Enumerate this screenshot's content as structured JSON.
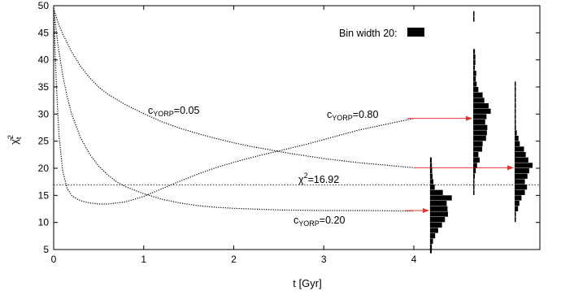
{
  "chart_data": {
    "type": "line",
    "xlabel": "t [Gyr]",
    "ylabel": "χ̄²_t",
    "xlim": [
      0,
      5.4
    ],
    "ylim": [
      5,
      50
    ],
    "xticks": [
      0,
      1,
      2,
      3,
      4
    ],
    "yticks": [
      5,
      10,
      15,
      20,
      25,
      30,
      35,
      40,
      45,
      50
    ],
    "grid": false,
    "series": [
      {
        "name": "cYORP=0.05",
        "label_main": "c",
        "label_sub": "YORP",
        "label_rest": "=0.05",
        "x": [
          0,
          0.05,
          0.1,
          0.2,
          0.3,
          0.4,
          0.5,
          0.6,
          0.8,
          1.0,
          1.2,
          1.4,
          1.6,
          1.8,
          2.0,
          2.2,
          2.4,
          2.6,
          2.8,
          3.0,
          3.2,
          3.4,
          3.6,
          3.8,
          4.0
        ],
        "y": [
          49.5,
          46.8,
          44.8,
          41.5,
          38.8,
          36.7,
          35.0,
          33.7,
          31.7,
          30.1,
          28.6,
          27.4,
          26.4,
          25.5,
          24.7,
          24.0,
          23.4,
          22.8,
          22.3,
          21.8,
          21.4,
          21.0,
          20.7,
          20.4,
          20.1
        ]
      },
      {
        "name": "cYORP=0.20",
        "label_main": "c",
        "label_sub": "YORP",
        "label_rest": "=0.20",
        "x": [
          0,
          0.05,
          0.1,
          0.15,
          0.2,
          0.3,
          0.4,
          0.5,
          0.6,
          0.7,
          0.8,
          1.0,
          1.2,
          1.4,
          1.6,
          1.8,
          2.0,
          2.5,
          3.0,
          3.5,
          4.0
        ],
        "y": [
          49.5,
          42.5,
          37.2,
          33.2,
          30.0,
          25.6,
          22.6,
          20.4,
          18.8,
          17.5,
          16.6,
          15.3,
          14.3,
          13.6,
          13.1,
          12.8,
          12.6,
          12.3,
          12.2,
          12.2,
          12.1
        ]
      },
      {
        "name": "cYORP=0.80",
        "label_main": "c",
        "label_sub": "YORP",
        "label_rest": "=0.80",
        "x": [
          0,
          0.03,
          0.06,
          0.1,
          0.15,
          0.2,
          0.25,
          0.3,
          0.4,
          0.5,
          0.6,
          0.8,
          1.0,
          1.2,
          1.4,
          1.6,
          1.8,
          2.0,
          2.2,
          2.4,
          2.6,
          2.8,
          3.0,
          3.2,
          3.4,
          3.6,
          3.8,
          4.0
        ],
        "y": [
          49.5,
          35.5,
          26.0,
          19.5,
          16.3,
          15.0,
          14.4,
          14.0,
          13.6,
          13.4,
          13.4,
          13.8,
          14.8,
          16.2,
          17.6,
          18.9,
          20.1,
          21.1,
          22.0,
          22.8,
          23.6,
          24.4,
          25.3,
          26.2,
          27.1,
          27.8,
          28.5,
          29.2
        ]
      }
    ],
    "reference_line": {
      "y": 16.92,
      "label_main": "χ",
      "label_sup": "2",
      "label_rest": "=16.92"
    },
    "annotation": {
      "text": "Bin width 20:"
    },
    "histograms": [
      {
        "from_series": "cYORP=0.20",
        "arrow_from": [
          3.9,
          12.2
        ],
        "arrow_to": [
          4.18,
          12.2
        ],
        "baseline_x": 4.18,
        "bins": [
          {
            "y": 4.75,
            "w": 20
          },
          {
            "y": 5.5,
            "w": 22
          },
          {
            "y": 6.5,
            "w": 35
          },
          {
            "y": 7.5,
            "w": 60
          },
          {
            "y": 8.5,
            "w": 95
          },
          {
            "y": 9.5,
            "w": 140
          },
          {
            "y": 10.5,
            "w": 175
          },
          {
            "y": 11.5,
            "w": 210
          },
          {
            "y": 12.5,
            "w": 205
          },
          {
            "y": 13.5,
            "w": 195
          },
          {
            "y": 14.5,
            "w": 255
          },
          {
            "y": 15.5,
            "w": 150
          },
          {
            "y": 16.5,
            "w": 55
          },
          {
            "y": 17.5,
            "w": 40
          },
          {
            "y": 18.5,
            "w": 30
          },
          {
            "y": 19.5,
            "w": 25
          },
          {
            "y": 20.5,
            "w": 22
          },
          {
            "y": 21.5,
            "w": 20
          }
        ]
      },
      {
        "from_series": "cYORP=0.80",
        "arrow_from": [
          3.93,
          29.2
        ],
        "arrow_to": [
          4.66,
          29.2
        ],
        "baseline_x": 4.66,
        "bins": [
          {
            "y": 15.5,
            "w": 8
          },
          {
            "y": 16.5,
            "w": 10
          },
          {
            "y": 17.5,
            "w": 10
          },
          {
            "y": 18.5,
            "w": 18
          },
          {
            "y": 19.5,
            "w": 30
          },
          {
            "y": 20.5,
            "w": 45
          },
          {
            "y": 21.5,
            "w": 75
          },
          {
            "y": 22.5,
            "w": 60
          },
          {
            "y": 23.5,
            "w": 105
          },
          {
            "y": 24.5,
            "w": 110
          },
          {
            "y": 25.5,
            "w": 150
          },
          {
            "y": 26.5,
            "w": 160
          },
          {
            "y": 27.5,
            "w": 165
          },
          {
            "y": 28.5,
            "w": 140
          },
          {
            "y": 29.5,
            "w": 155
          },
          {
            "y": 30.5,
            "w": 205
          },
          {
            "y": 31.5,
            "w": 180
          },
          {
            "y": 32.5,
            "w": 130
          },
          {
            "y": 33.5,
            "w": 110
          },
          {
            "y": 34.5,
            "w": 60
          },
          {
            "y": 35.5,
            "w": 40
          },
          {
            "y": 36.5,
            "w": 30
          },
          {
            "y": 37.5,
            "w": 35
          },
          {
            "y": 38.5,
            "w": 20
          },
          {
            "y": 39.5,
            "w": 25
          },
          {
            "y": 40.5,
            "w": 25
          },
          {
            "y": 41.5,
            "w": 20
          },
          {
            "y": 47.5,
            "w": 10
          },
          {
            "y": 48.5,
            "w": 10
          }
        ]
      },
      {
        "from_series": "cYORP=0.05",
        "arrow_from": [
          4.0,
          20.1
        ],
        "arrow_to": [
          5.12,
          20.1
        ],
        "baseline_x": 5.12,
        "bins": [
          {
            "y": 10.5,
            "w": 10
          },
          {
            "y": 11.5,
            "w": 15
          },
          {
            "y": 12.5,
            "w": 40
          },
          {
            "y": 13.5,
            "w": 55
          },
          {
            "y": 14.5,
            "w": 80
          },
          {
            "y": 15.5,
            "w": 120
          },
          {
            "y": 16.5,
            "w": 145
          },
          {
            "y": 17.5,
            "w": 120
          },
          {
            "y": 18.5,
            "w": 150
          },
          {
            "y": 19.5,
            "w": 170
          },
          {
            "y": 20.5,
            "w": 210
          },
          {
            "y": 21.5,
            "w": 160
          },
          {
            "y": 22.5,
            "w": 130
          },
          {
            "y": 23.5,
            "w": 110
          },
          {
            "y": 24.5,
            "w": 60
          },
          {
            "y": 25.5,
            "w": 45
          },
          {
            "y": 26.5,
            "w": 25
          },
          {
            "y": 27.5,
            "w": 15
          },
          {
            "y": 28.5,
            "w": 12
          },
          {
            "y": 29.5,
            "w": 10
          },
          {
            "y": 30.5,
            "w": 8
          },
          {
            "y": 31.5,
            "w": 8
          },
          {
            "y": 32.5,
            "w": 8
          },
          {
            "y": 33.5,
            "w": 6
          },
          {
            "y": 34.5,
            "w": 6
          },
          {
            "y": 35.5,
            "w": 5
          }
        ]
      }
    ],
    "legend_box_width": 20,
    "colors": {
      "curve": "#000000",
      "histogram": "#000000",
      "arrow": "#e8322a",
      "reference": "#000000",
      "axes": "#000000"
    }
  }
}
